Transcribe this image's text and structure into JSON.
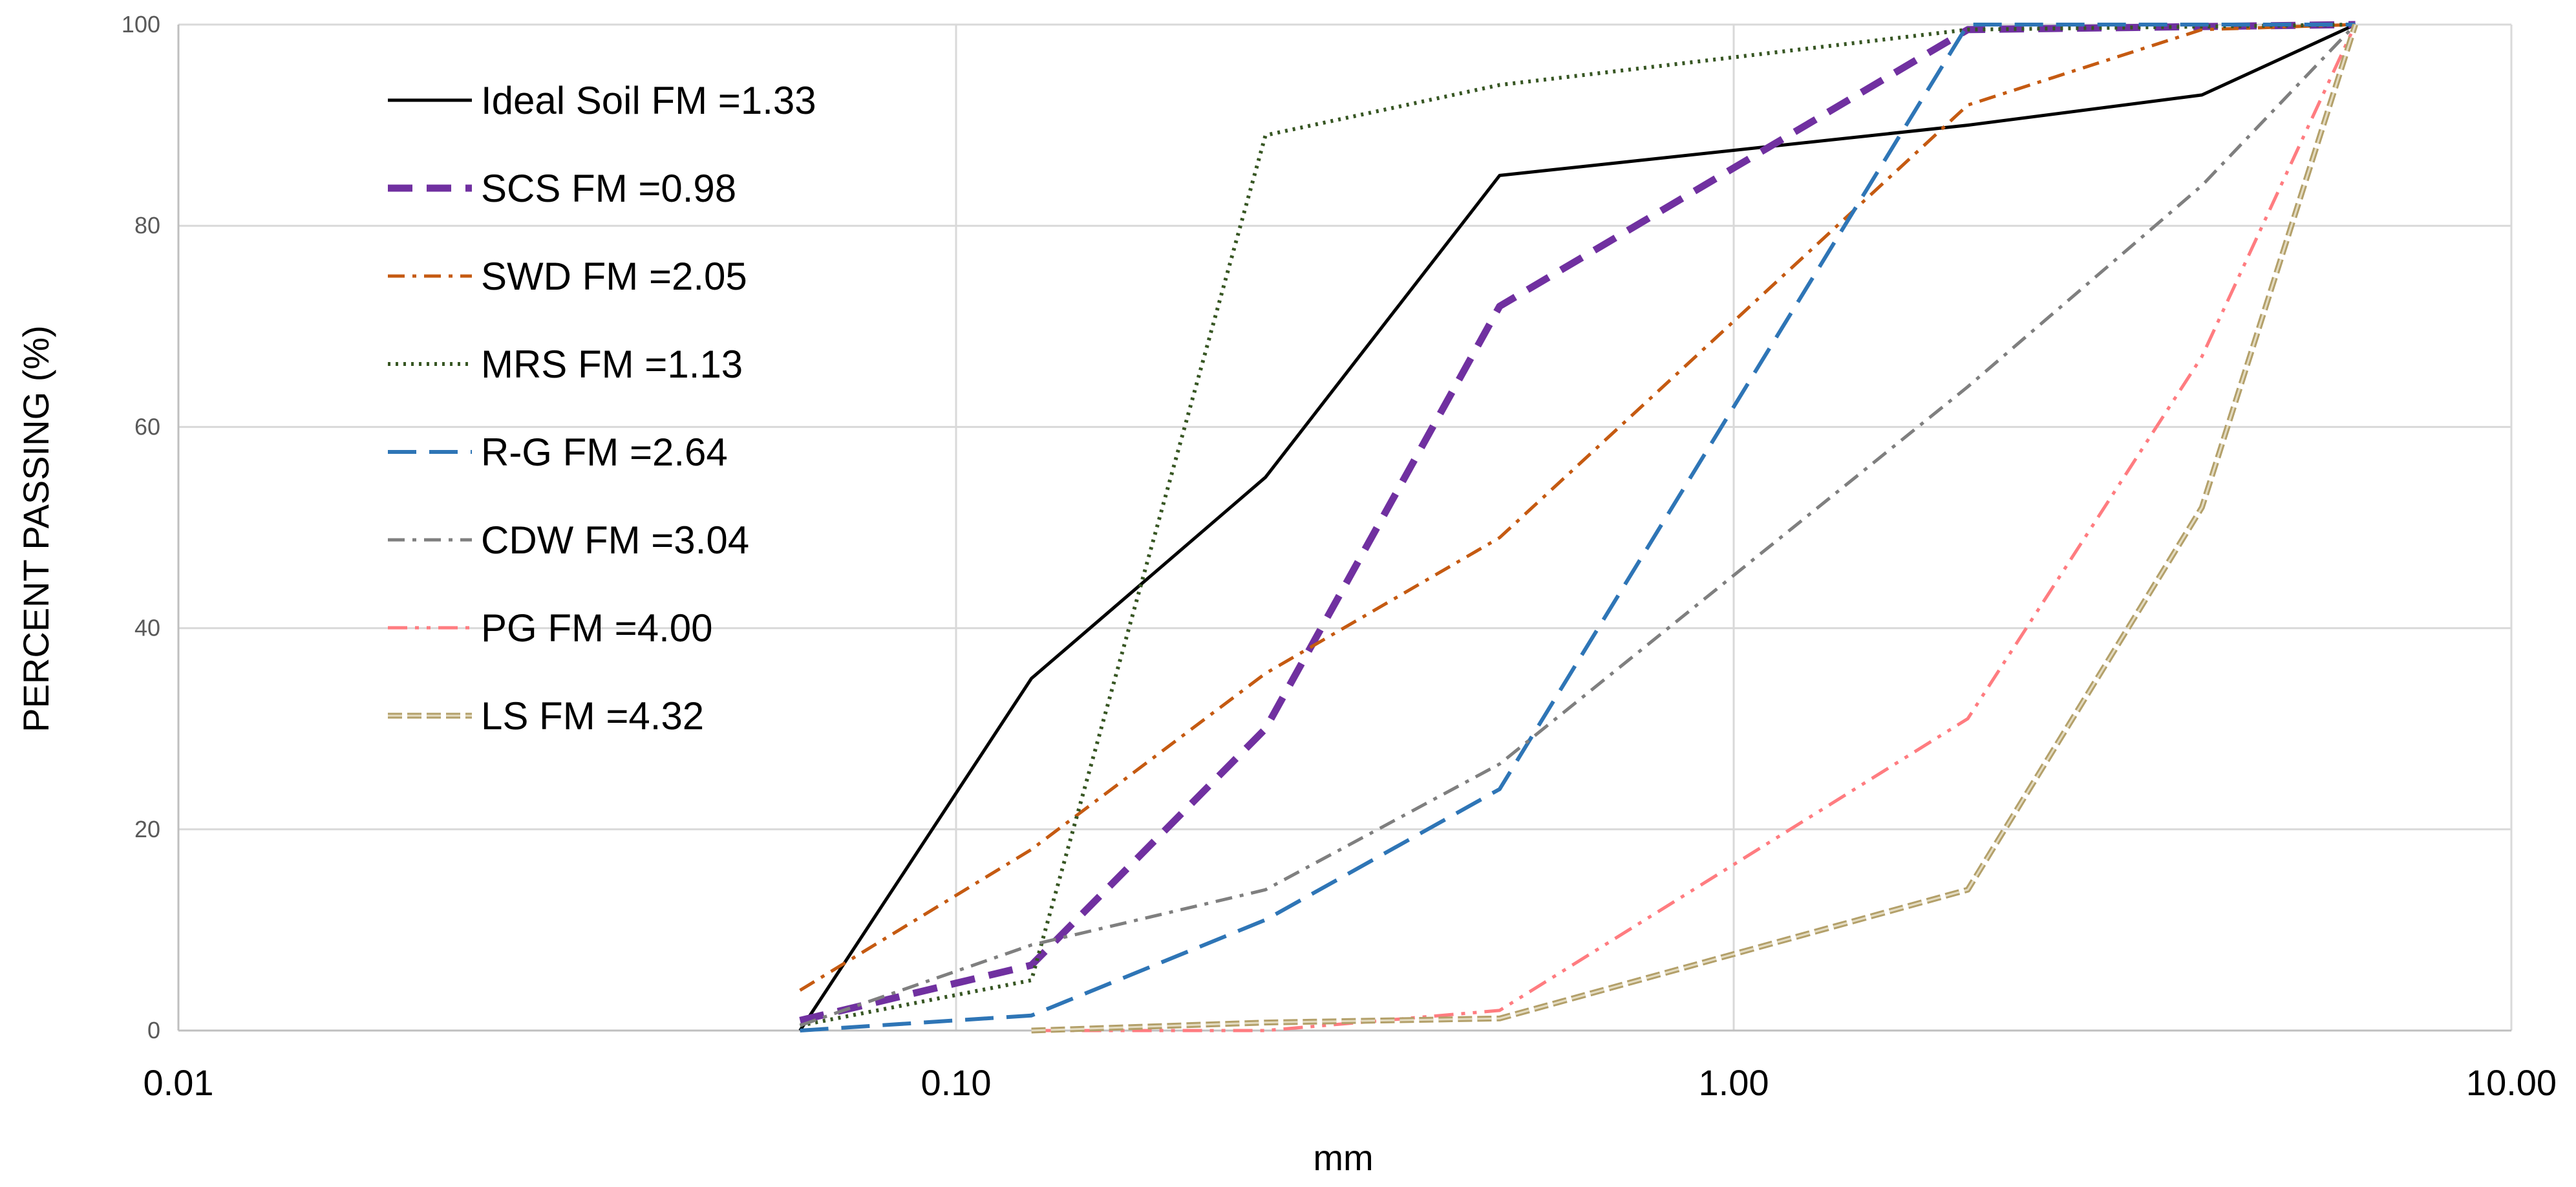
{
  "chart_data": {
    "type": "line",
    "xscale": "log",
    "xlabel": "mm",
    "ylabel": "PERCENT PASSING (%)",
    "xlim": [
      0.01,
      10
    ],
    "ylim": [
      0,
      100
    ],
    "x_ticks": [
      0.01,
      0.1,
      1,
      10
    ],
    "x_tick_labels": [
      "0.01",
      "0.10",
      "1.00",
      "10.00"
    ],
    "y_ticks": [
      0,
      20,
      40,
      60,
      80,
      100
    ],
    "y_tick_labels": [
      "0",
      "20",
      "40",
      "60",
      "80",
      "100"
    ],
    "grid": true,
    "legend_position": "top-left",
    "series": [
      {
        "name": "Ideal Soil FM =1.33",
        "color": "#000000",
        "style": "solid",
        "x": [
          0.063,
          0.125,
          0.25,
          0.5,
          2,
          4,
          6.3
        ],
        "y": [
          0,
          35,
          55,
          85,
          90,
          93,
          100
        ]
      },
      {
        "name": "SCS FM =0.98",
        "color": "#7030a0",
        "style": "dash",
        "x": [
          0.063,
          0.125,
          0.25,
          0.5,
          2,
          4,
          6.3
        ],
        "y": [
          1,
          6.5,
          30,
          72,
          99.5,
          99.8,
          100
        ]
      },
      {
        "name": "SWD FM =2.05",
        "color": "#c55a11",
        "style": "dashdot",
        "x": [
          0.063,
          0.125,
          0.25,
          0.5,
          2,
          4,
          6.3
        ],
        "y": [
          4,
          18,
          35.5,
          49,
          92,
          99.5,
          100
        ]
      },
      {
        "name": "MRS FM =1.13",
        "color": "#375623",
        "style": "dot",
        "x": [
          0.063,
          0.125,
          0.25,
          0.5,
          2,
          4,
          6.3
        ],
        "y": [
          0.5,
          5,
          89,
          94,
          99.5,
          99.8,
          100
        ]
      },
      {
        "name": "R-G FM =2.64",
        "color": "#2e75b6",
        "style": "longdash",
        "x": [
          0.063,
          0.125,
          0.25,
          0.5,
          2,
          4,
          6.3
        ],
        "y": [
          0,
          1.5,
          11,
          24,
          100,
          100,
          100
        ]
      },
      {
        "name": "CDW FM =3.04",
        "color": "#7f7f7f",
        "style": "dashdot",
        "x": [
          0.063,
          0.125,
          0.25,
          0.5,
          2,
          4,
          6.3
        ],
        "y": [
          0.5,
          8.5,
          14,
          26.5,
          64,
          84,
          100
        ]
      },
      {
        "name": "PG FM =4.00",
        "color": "#ff7c80",
        "style": "dashdotdot",
        "x": [
          0.125,
          0.25,
          0.5,
          2,
          4,
          6.3
        ],
        "y": [
          0,
          0,
          2,
          31,
          67,
          100
        ]
      },
      {
        "name": "LS FM =4.32",
        "color": "#b3a06a",
        "style": "double",
        "x": [
          0.125,
          0.25,
          0.5,
          2,
          4,
          6.3
        ],
        "y": [
          0,
          0.8,
          1.2,
          14,
          52,
          100
        ]
      }
    ]
  }
}
